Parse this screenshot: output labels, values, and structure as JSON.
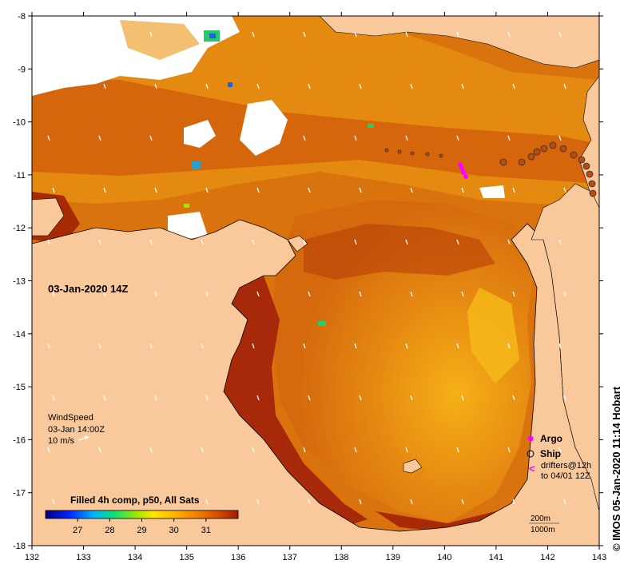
{
  "map": {
    "timestamp_label": "03-Jan-2020 14Z",
    "credit": "© IMOS 05-Jan-2020 11:14 Hobart",
    "x_ticks": [
      "132",
      "133",
      "134",
      "135",
      "136",
      "137",
      "138",
      "139",
      "140",
      "141",
      "142",
      "143"
    ],
    "y_ticks": [
      "-8",
      "-9",
      "-10",
      "-11",
      "-12",
      "-13",
      "-14",
      "-15",
      "-16",
      "-17",
      "-18"
    ],
    "lon_range": [
      132,
      143
    ],
    "lat_range": [
      -18,
      -8
    ],
    "colors": {
      "land": "#f9c99b",
      "sst_warm": "#e07f10",
      "sst_hot": "#a82a04",
      "sst_mid": "#ef9e13",
      "cloud": "#ffffff",
      "argo": "#ff00ff"
    }
  },
  "wind": {
    "title": "WindSpeed",
    "time": "03-Jan 14:00Z",
    "scale_label": "10 m/s"
  },
  "legend": {
    "argo": "Argo",
    "ship": "Ship",
    "drifters_line1": "drifters@12h",
    "drifters_line2": "to 04/01 12Z",
    "depth_200": "200m",
    "depth_1000": "1000m"
  },
  "colorbar": {
    "title": "Filled 4h comp, p50, All Sats",
    "ticks": [
      "27",
      "28",
      "29",
      "30",
      "31"
    ],
    "range": [
      26,
      32
    ]
  }
}
